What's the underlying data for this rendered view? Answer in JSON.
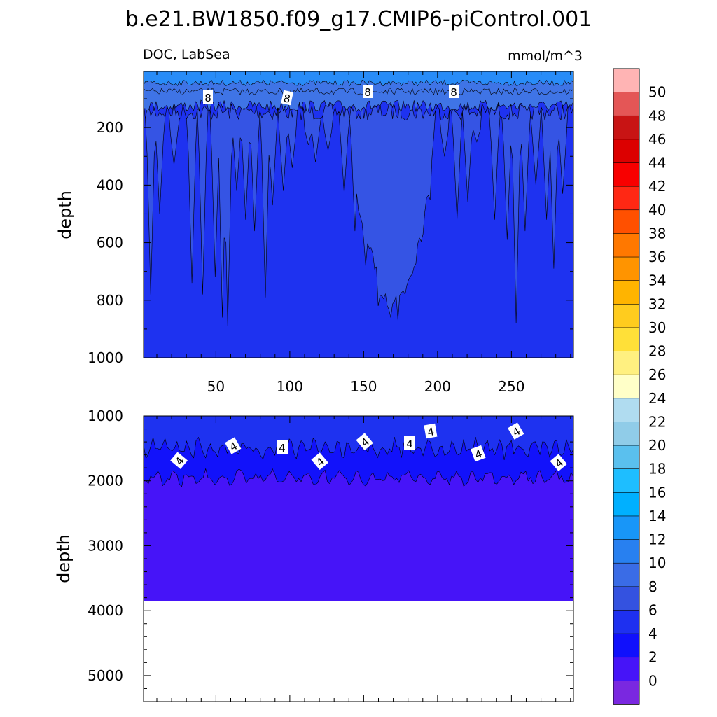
{
  "title": "b.e21.BW1850.f09_g17.CMIP6-piControl.001",
  "panel": {
    "left_label": "DOC, LabSea",
    "right_label": "mmol/m^3"
  },
  "colors": {
    "below_min": "#7a28e0",
    "bin_0_2": "#4614f8",
    "bin_2_4": "#1212fa",
    "bin_4_6": "#1e32f0",
    "bin_6_8": "#3554e4",
    "bin_8_10": "#3f74e6",
    "bin_10_12": "#288cf8",
    "bin_12_14": "#1aa0fa",
    "contour_line": "#000000",
    "missing": "#ffffff"
  },
  "colorbar": {
    "labels": [
      "50",
      "48",
      "46",
      "44",
      "42",
      "40",
      "38",
      "36",
      "34",
      "32",
      "30",
      "28",
      "26",
      "24",
      "22",
      "20",
      "18",
      "16",
      "14",
      "12",
      "10",
      "8",
      "6",
      "4",
      "2",
      "0"
    ],
    "colors": [
      "#ffb4b4",
      "#e45656",
      "#c81414",
      "#dc0000",
      "#f80000",
      "#ff2814",
      "#ff5000",
      "#ff7800",
      "#ff9400",
      "#ffb400",
      "#ffcc1e",
      "#ffe038",
      "#fff080",
      "#ffffc8",
      "#b0dcf0",
      "#90cce8",
      "#5ac0ee",
      "#1ebeff",
      "#00b0ff",
      "#1896f8",
      "#2880f0",
      "#3a6ce6",
      "#3452e0",
      "#1e30f0",
      "#1010fc",
      "#4614f8",
      "#7a28e0"
    ]
  },
  "chart_data": [
    {
      "type": "contour",
      "panel": "upper",
      "ylabel": "depth",
      "xlabel": "",
      "xlim": [
        1,
        292
      ],
      "ylim": [
        1000,
        5
      ],
      "xticks": [
        "50",
        "100",
        "150",
        "200",
        "250"
      ],
      "yticks": [
        "200",
        "400",
        "600",
        "800",
        "1000"
      ],
      "contour_labels": [
        "8",
        "8",
        "8",
        "8"
      ],
      "surface_depth_10": 20,
      "surface_depth_8": 85
    },
    {
      "type": "contour",
      "panel": "lower",
      "ylabel": "depth",
      "xlabel": "",
      "xlim": [
        1,
        292
      ],
      "ylim": [
        5400,
        1000
      ],
      "yticks": [
        "1000",
        "2000",
        "3000",
        "4000",
        "5000"
      ],
      "contour_labels": [
        "4",
        "4",
        "4",
        "4",
        "4",
        "4",
        "4",
        "4",
        "4",
        "4",
        "4"
      ],
      "mean_depth_4": 1500,
      "mean_depth_2": 1950,
      "bottom_depth": 3850
    }
  ]
}
